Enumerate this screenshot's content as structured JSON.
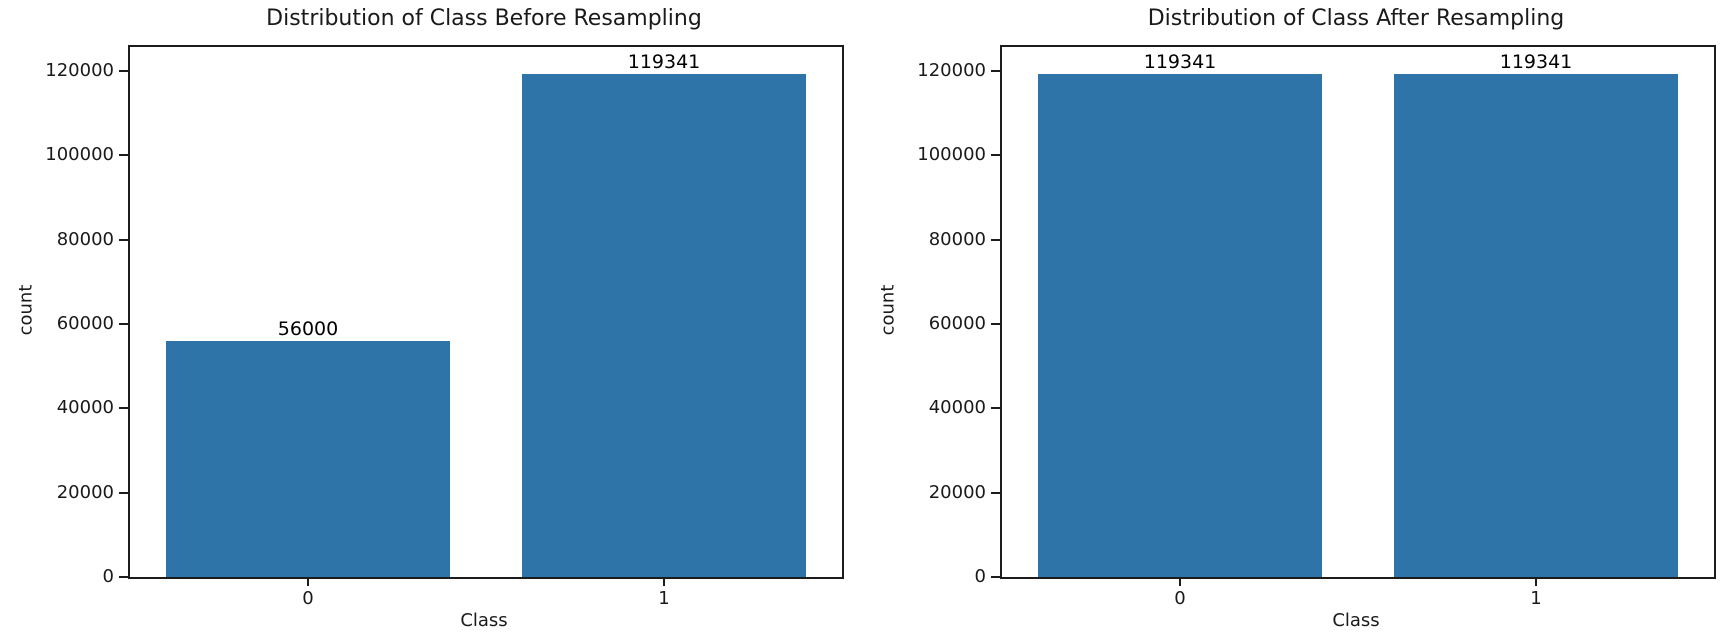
{
  "figure": {
    "background": "#ffffff",
    "bar_color": "#2e74a8",
    "spine_color": "#1c1c1c",
    "text_color": "#1a1a1a"
  },
  "chart_data": [
    {
      "type": "bar",
      "title": "Distribution of Class Before Resampling",
      "categories": [
        "0",
        "1"
      ],
      "values": [
        56000,
        119341
      ],
      "bar_labels": [
        "56000",
        "119341"
      ],
      "xlabel": "Class",
      "ylabel": "count",
      "yticks": [
        0,
        20000,
        40000,
        60000,
        80000,
        100000,
        120000
      ],
      "ytick_labels": [
        "0",
        "20000",
        "40000",
        "60000",
        "80000",
        "100000",
        "120000"
      ],
      "ylim": [
        0,
        125700
      ],
      "grid": false,
      "legend": "none"
    },
    {
      "type": "bar",
      "title": "Distribution of Class After Resampling",
      "categories": [
        "0",
        "1"
      ],
      "values": [
        119341,
        119341
      ],
      "bar_labels": [
        "119341",
        "119341"
      ],
      "xlabel": "Class",
      "ylabel": "count",
      "yticks": [
        0,
        20000,
        40000,
        60000,
        80000,
        100000,
        120000
      ],
      "ytick_labels": [
        "0",
        "20000",
        "40000",
        "60000",
        "80000",
        "100000",
        "120000"
      ],
      "ylim": [
        0,
        125700
      ],
      "grid": false,
      "legend": "none"
    }
  ]
}
